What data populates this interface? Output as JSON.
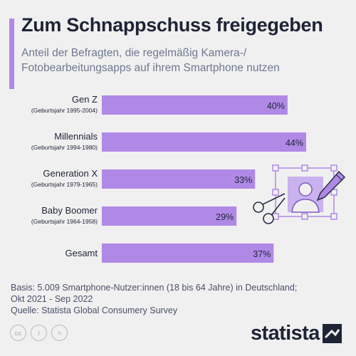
{
  "header": {
    "title": "Zum Schnappschuss freigegeben",
    "subtitle_lines": [
      "Anteil der Befragten, die regelmäßig Kamera-/",
      "Fotobearbeitungsapps auf ihrem Smartphone nutzen"
    ]
  },
  "colors": {
    "bar": "#b089e6",
    "accent": "#b089e6",
    "text_dark": "#1e2436",
    "text_muted": "#6f7891",
    "background": "#f0f0f0"
  },
  "chart_data": {
    "type": "bar",
    "orientation": "horizontal",
    "title": "Zum Schnappschuss freigegeben",
    "categories": [
      {
        "label": "Gen Z",
        "sublabel": "(Geburtsjahr 1995-2004)"
      },
      {
        "label": "Millennials",
        "sublabel": "(Geburtsjahr 1994-1980)"
      },
      {
        "label": "Generation X",
        "sublabel": "(Geburtsjahr 1979-1965)"
      },
      {
        "label": "Baby Boomer",
        "sublabel": "(Geburtsjahr 1964-1958)"
      },
      {
        "label": "Gesamt",
        "sublabel": ""
      }
    ],
    "values": [
      40,
      44,
      33,
      29,
      37
    ],
    "value_labels": [
      "40%",
      "44%",
      "33%",
      "29%",
      "37%"
    ],
    "unit": "%",
    "xlim": [
      0,
      44
    ],
    "grid": false,
    "legend": "none"
  },
  "illustration": {
    "icon": "photo-edit-icon",
    "parts": [
      "scissors-icon",
      "pencil-icon",
      "person-portrait-icon",
      "selection-frame-icon"
    ]
  },
  "footer": {
    "basis_lines": [
      "Basis: 5.009 Smartphone-Nutzer:innen (18 bis 64 Jahre) in Deutschland;",
      "Okt 2021 - Sep 2022"
    ],
    "source": "Quelle: Statista Global Consumery Survey",
    "license_icons": [
      "cc-icon",
      "by-icon",
      "nd-icon"
    ],
    "license_glyphs": [
      "cc",
      "i",
      "="
    ],
    "brand": "statista"
  }
}
